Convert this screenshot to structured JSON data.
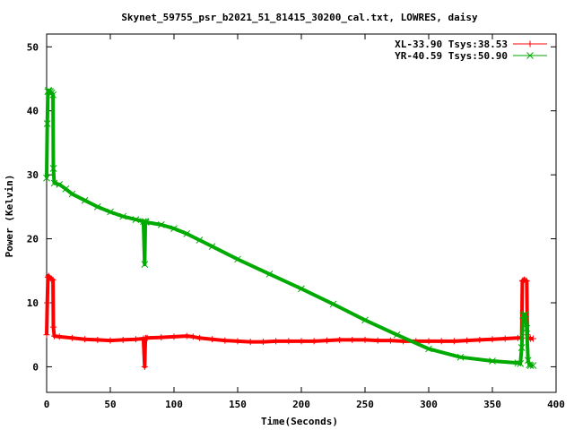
{
  "chart_data": {
    "type": "line",
    "title": "Skynet_59755_psr_b2021_51_81415_30200_cal.txt, LOWRES, daisy",
    "xlabel": "Time(Seconds)",
    "ylabel": "Power (Kelvin)",
    "xlim": [
      0,
      400
    ],
    "ylim": [
      -4,
      52
    ],
    "x_ticks": [
      "0",
      "50",
      "100",
      "150",
      "200",
      "250",
      "300",
      "350",
      "400"
    ],
    "y_ticks": [
      "0",
      "10",
      "20",
      "30",
      "40",
      "50"
    ],
    "grid": false,
    "legend_position": "top-right",
    "series": [
      {
        "name": "XL-33.90 Tsys:38.53",
        "color": "#ff0000",
        "marker": "plus",
        "x": [
          0,
          0.5,
          1,
          1.5,
          2,
          3,
          4,
          5,
          5.3,
          6,
          10,
          20,
          30,
          40,
          50,
          60,
          70,
          76,
          77,
          77.5,
          78,
          79,
          90,
          100,
          110,
          115,
          120,
          130,
          140,
          150,
          160,
          170,
          180,
          190,
          200,
          210,
          220,
          230,
          240,
          250,
          260,
          270,
          280,
          290,
          300,
          310,
          320,
          330,
          340,
          350,
          360,
          370,
          373,
          373.5,
          374,
          375,
          376,
          377,
          377.5,
          378,
          380,
          382
        ],
        "y": [
          5,
          10,
          14,
          14.2,
          14,
          13.8,
          13.7,
          13.6,
          6.2,
          4.8,
          4.7,
          4.5,
          4.3,
          4.2,
          4.1,
          4.2,
          4.3,
          4.4,
          0,
          4.4,
          4.5,
          4.5,
          4.6,
          4.7,
          4.8,
          4.7,
          4.5,
          4.3,
          4.1,
          4.0,
          3.9,
          3.9,
          4.0,
          4.0,
          4.0,
          4.0,
          4.1,
          4.2,
          4.2,
          4.2,
          4.1,
          4.1,
          4.0,
          4.0,
          4.0,
          4.0,
          4.0,
          4.1,
          4.2,
          4.3,
          4.4,
          4.5,
          4.5,
          13.4,
          13.5,
          13.6,
          13.5,
          13.4,
          5,
          4.5,
          4.4,
          4.4
        ]
      },
      {
        "name": "YR-40.59 Tsys:50.90",
        "color": "#00aa00",
        "marker": "cross",
        "x": [
          0,
          0.5,
          1,
          1.5,
          2,
          3,
          4,
          5,
          5.3,
          6,
          10,
          15,
          20,
          30,
          40,
          50,
          60,
          70,
          76,
          77,
          77.5,
          78,
          90,
          100,
          110,
          120,
          130,
          150,
          175,
          200,
          225,
          250,
          275,
          300,
          325,
          350,
          370,
          372,
          373,
          374,
          375,
          376,
          377,
          378,
          379,
          380,
          382
        ],
        "y": [
          29.5,
          38,
          43,
          43.2,
          43.1,
          43,
          42.8,
          42.5,
          31,
          28.7,
          28.5,
          27.8,
          27,
          26,
          25,
          24.2,
          23.5,
          23,
          22.7,
          16,
          22.7,
          22.6,
          22.2,
          21.6,
          20.8,
          19.8,
          18.8,
          16.8,
          14.5,
          12.2,
          9.8,
          7.3,
          5,
          2.8,
          1.5,
          0.9,
          0.6,
          0.5,
          3,
          8,
          8.1,
          8.2,
          6,
          1,
          0.3,
          0.2,
          0.2
        ]
      }
    ]
  }
}
